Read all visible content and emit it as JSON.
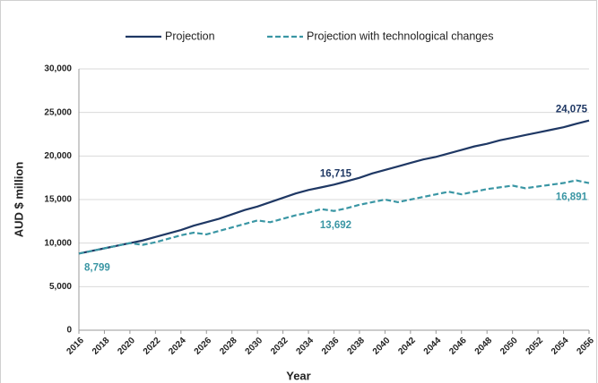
{
  "chart_data": {
    "type": "line",
    "x": [
      2016,
      2017,
      2018,
      2019,
      2020,
      2021,
      2022,
      2023,
      2024,
      2025,
      2026,
      2027,
      2028,
      2029,
      2030,
      2031,
      2032,
      2033,
      2034,
      2035,
      2036,
      2037,
      2038,
      2039,
      2040,
      2041,
      2042,
      2043,
      2044,
      2045,
      2046,
      2047,
      2048,
      2049,
      2050,
      2051,
      2052,
      2053,
      2054,
      2055,
      2056
    ],
    "series": [
      {
        "name": "Projection",
        "color": "#1f3864",
        "dash": false,
        "values": [
          8799,
          9100,
          9400,
          9700,
          10000,
          10300,
          10700,
          11100,
          11500,
          12000,
          12400,
          12800,
          13300,
          13800,
          14200,
          14700,
          15200,
          15700,
          16100,
          16400,
          16715,
          17100,
          17500,
          18000,
          18400,
          18800,
          19200,
          19600,
          19900,
          20300,
          20700,
          21100,
          21400,
          21800,
          22100,
          22400,
          22700,
          23000,
          23300,
          23700,
          24075
        ],
        "value_labels": [
          null,
          null,
          null,
          null,
          null,
          null,
          null,
          null,
          null,
          null,
          null,
          null,
          null,
          null,
          null,
          null,
          null,
          null,
          null,
          null,
          "16,715",
          null,
          null,
          null,
          null,
          null,
          null,
          null,
          null,
          null,
          null,
          null,
          null,
          null,
          null,
          null,
          null,
          null,
          null,
          null,
          "24,075"
        ]
      },
      {
        "name": "Projection with technological changes",
        "color": "#3a96a4",
        "dash": true,
        "values": [
          8799,
          9100,
          9400,
          9700,
          10000,
          9800,
          10100,
          10500,
          10900,
          11200,
          11000,
          11400,
          11800,
          12200,
          12600,
          12400,
          12800,
          13200,
          13500,
          13900,
          13692,
          14000,
          14400,
          14700,
          15000,
          14700,
          15000,
          15300,
          15600,
          15900,
          15600,
          15900,
          16200,
          16400,
          16600,
          16300,
          16500,
          16700,
          16900,
          17200,
          16891
        ],
        "value_labels": [
          "8,799",
          null,
          null,
          null,
          null,
          null,
          null,
          null,
          null,
          null,
          null,
          null,
          null,
          null,
          null,
          null,
          null,
          null,
          null,
          null,
          "13,692",
          null,
          null,
          null,
          null,
          null,
          null,
          null,
          null,
          null,
          null,
          null,
          null,
          null,
          null,
          null,
          null,
          null,
          null,
          null,
          "16,891"
        ]
      }
    ],
    "xlim": [
      2016,
      2056
    ],
    "xticks": [
      2016,
      2018,
      2020,
      2022,
      2024,
      2026,
      2028,
      2030,
      2032,
      2034,
      2036,
      2038,
      2040,
      2042,
      2044,
      2046,
      2048,
      2050,
      2052,
      2054,
      2056
    ],
    "ylim": [
      0,
      30000
    ],
    "yticks": [
      0,
      {
        "value": 5000,
        "label": "5,000"
      },
      {
        "value": 10000,
        "label": "10,000"
      },
      {
        "value": 15000,
        "label": "15,000"
      },
      {
        "value": 20000,
        "label": "20,000"
      },
      {
        "value": 25000,
        "label": "25,000"
      },
      {
        "value": 30000,
        "label": "30,000"
      }
    ],
    "xlabel": "Year",
    "ylabel": "AUD $ million",
    "grid": true,
    "legend": "top"
  }
}
